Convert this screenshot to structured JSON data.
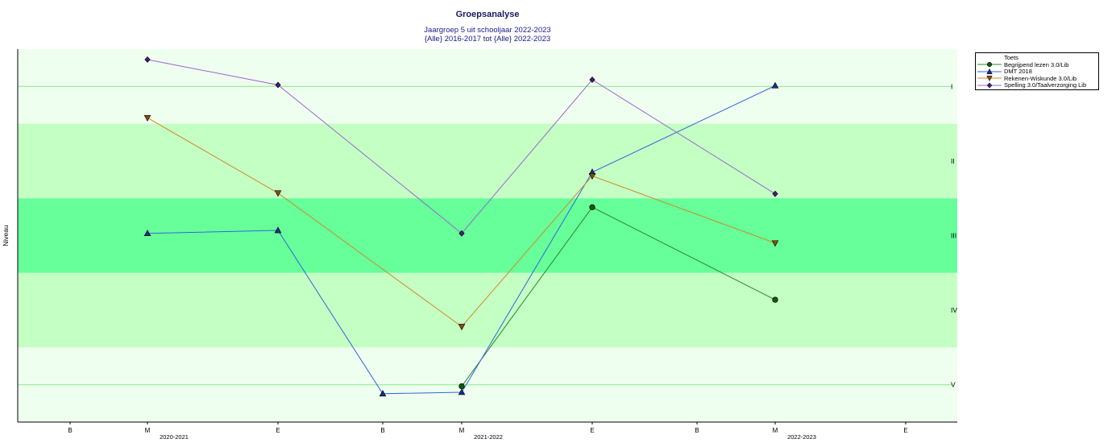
{
  "chart_data": {
    "type": "line",
    "title": "Groepsanalyse",
    "subtitle_lines": [
      "Jaargroep 5 uit schooljaar 2022-2023",
      "{Alle} 2016-2017 tot {Alle} 2022-2023"
    ],
    "ylabel": "Niveau",
    "levels": [
      "I",
      "II",
      "III",
      "IV",
      "V"
    ],
    "level_colors": [
      "#efffef",
      "#c4ffc4",
      "#66ff99",
      "#c4ffc4",
      "#efffef"
    ],
    "ylim": [
      0.5,
      5.5
    ],
    "x_ticks": [
      "B",
      "M",
      "E",
      "B",
      "M",
      "E",
      "B",
      "M",
      "E"
    ],
    "x_groups": [
      {
        "label": "2020-2021",
        "at": 1
      },
      {
        "label": "2021-2022",
        "at": 4
      },
      {
        "label": "2022-2023",
        "at": 7
      }
    ],
    "legend_title": "Toets",
    "legend_position": "top-right",
    "series": [
      {
        "name": "Begrijpend lezen 3.0/Lib",
        "color": "#2a8a2a",
        "marker_color": "#0d5a0d",
        "marker": "circle",
        "points": [
          {
            "x": 4,
            "y": 5.02
          },
          {
            "x": 5,
            "y": 2.62
          },
          {
            "x": 7,
            "y": 3.86
          }
        ]
      },
      {
        "name": "DMT 2018",
        "color": "#3366dd",
        "marker_color": "#1a2f8c",
        "marker": "triangle-up",
        "points": [
          {
            "x": 1,
            "y": 2.97
          },
          {
            "x": 2,
            "y": 2.93
          },
          {
            "x": 3,
            "y": 5.12
          },
          {
            "x": 4,
            "y": 5.1
          },
          {
            "x": 5,
            "y": 2.15
          },
          {
            "x": 7,
            "y": 0.99
          }
        ]
      },
      {
        "name": "Rekenen-Wiskunde 3.0/Lib",
        "color": "#d08a2a",
        "marker_color": "#8a4a0d",
        "marker": "triangle-down",
        "points": [
          {
            "x": 1,
            "y": 1.42
          },
          {
            "x": 2,
            "y": 2.43
          },
          {
            "x": 4,
            "y": 4.22
          },
          {
            "x": 5,
            "y": 2.2
          },
          {
            "x": 7,
            "y": 3.1
          }
        ]
      },
      {
        "name": "Spelling 3.0/Taalverzorging Lib",
        "color": "#9966cc",
        "marker_color": "#4a1a7a",
        "marker": "diamond",
        "points": [
          {
            "x": 1,
            "y": 0.64
          },
          {
            "x": 2,
            "y": 0.98
          },
          {
            "x": 4,
            "y": 2.97
          },
          {
            "x": 5,
            "y": 0.91
          },
          {
            "x": 7,
            "y": 2.44
          }
        ]
      }
    ]
  }
}
